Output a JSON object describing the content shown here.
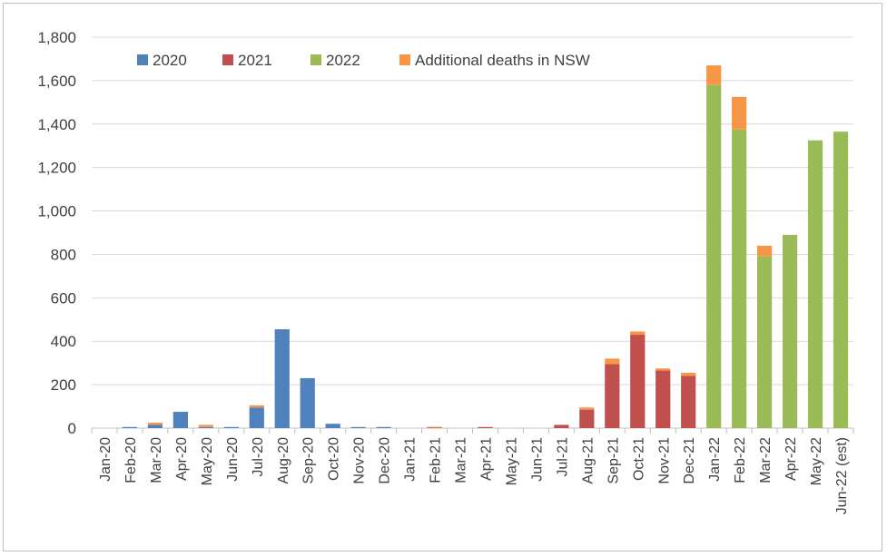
{
  "chart_data": {
    "type": "bar",
    "stacked": true,
    "title": "",
    "xlabel": "",
    "ylabel": "",
    "ylim": [
      0,
      1800
    ],
    "yticks": [
      0,
      200,
      400,
      600,
      800,
      1000,
      1200,
      1400,
      1600,
      1800
    ],
    "ytick_labels": [
      "0",
      "200",
      "400",
      "600",
      "800",
      "1,000",
      "1,200",
      "1,400",
      "1,600",
      "1,800"
    ],
    "grid": true,
    "legend_position": "top-left",
    "categories": [
      "Jan-20",
      "Feb-20",
      "Mar-20",
      "Apr-20",
      "May-20",
      "Jun-20",
      "Jul-20",
      "Aug-20",
      "Sep-20",
      "Oct-20",
      "Nov-20",
      "Dec-20",
      "Jan-21",
      "Feb-21",
      "Mar-21",
      "Apr-21",
      "May-21",
      "Jun-21",
      "Jul-21",
      "Aug-21",
      "Sep-21",
      "Oct-21",
      "Nov-21",
      "Dec-21",
      "Jan-22",
      "Feb-22",
      "Mar-22",
      "Apr-22",
      "May-22",
      "Jun-22 (est)"
    ],
    "series": [
      {
        "name": "2020",
        "color": "#4f81bd",
        "values": [
          0,
          5,
          15,
          75,
          5,
          5,
          95,
          455,
          230,
          20,
          5,
          5,
          0,
          0,
          0,
          0,
          0,
          0,
          0,
          0,
          0,
          0,
          0,
          0,
          0,
          0,
          0,
          0,
          0,
          0
        ]
      },
      {
        "name": "2021",
        "color": "#c0504d",
        "values": [
          0,
          0,
          0,
          0,
          0,
          0,
          0,
          0,
          0,
          0,
          0,
          0,
          0,
          3,
          0,
          5,
          0,
          0,
          15,
          85,
          295,
          430,
          265,
          240,
          0,
          0,
          0,
          0,
          0,
          0
        ]
      },
      {
        "name": "2022",
        "color": "#9bbb59",
        "values": [
          0,
          0,
          0,
          0,
          0,
          0,
          0,
          0,
          0,
          0,
          0,
          0,
          0,
          0,
          0,
          0,
          0,
          0,
          0,
          0,
          0,
          0,
          0,
          0,
          1580,
          1375,
          790,
          890,
          1325,
          1365
        ]
      },
      {
        "name": "Additional deaths in NSW",
        "color": "#f79646",
        "values": [
          0,
          0,
          10,
          0,
          10,
          0,
          10,
          0,
          0,
          0,
          0,
          0,
          0,
          3,
          0,
          0,
          0,
          0,
          0,
          10,
          25,
          15,
          10,
          15,
          90,
          150,
          50,
          0,
          0,
          0
        ]
      }
    ]
  }
}
